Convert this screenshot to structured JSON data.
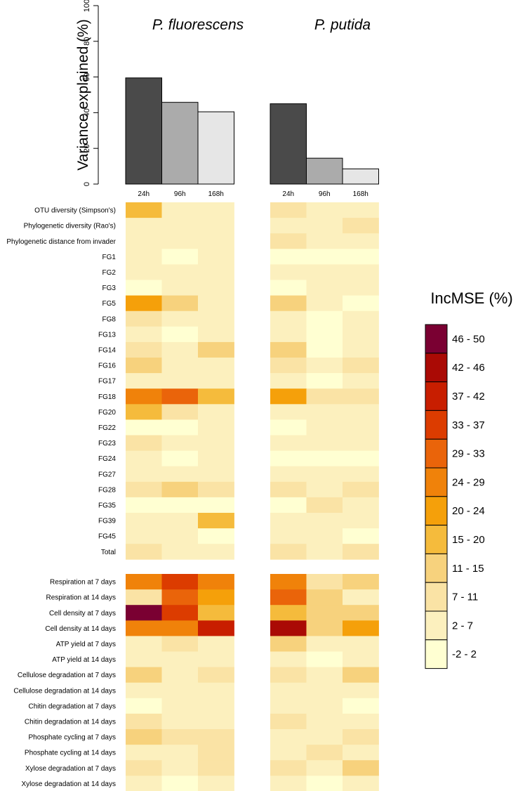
{
  "chart_data": [
    {
      "type": "bar",
      "ylabel": "Variance explained (%)",
      "ylim": [
        0,
        100
      ],
      "yticks": [
        "0",
        "20",
        "40",
        "60",
        "80",
        "100"
      ],
      "categories": [
        "24h",
        "96h",
        "168h"
      ],
      "colors": [
        "#4a4a4a",
        "#ababab",
        "#e6e6e6"
      ],
      "panels": [
        {
          "title": "P. fluorescens",
          "values": [
            59.5,
            45.8,
            40.5
          ]
        },
        {
          "title": "P. putida",
          "values": [
            45,
            14.5,
            8.5
          ]
        }
      ]
    },
    {
      "type": "heatmap",
      "columns": [
        "24h",
        "96h",
        "168h"
      ],
      "panels": [
        "P. fluorescens",
        "P. putida"
      ],
      "groups": [
        {
          "rows": [
            "OTU diversity (Simpson's)",
            "Phylogenetic diversity (Rao's)",
            "Phylogenetic distance from invader",
            "FG1",
            "FG2",
            "FG3",
            "FG5",
            "FG8",
            "FG13",
            "FG14",
            "FG16",
            "FG17",
            "FG18",
            "FG20",
            "FG22",
            "FG23",
            "FG24",
            "FG27",
            "FG28",
            "FG35",
            "FG39",
            "FG45",
            "Total"
          ],
          "values": [
            [
              [
                4,
                1,
                1
              ],
              [
                1,
                1,
                1
              ],
              [
                1,
                1,
                1
              ],
              [
                1,
                0,
                1
              ],
              [
                1,
                1,
                1
              ],
              [
                0,
                1,
                1
              ],
              [
                5,
                3,
                1
              ],
              [
                2,
                1,
                1
              ],
              [
                1,
                0,
                1
              ],
              [
                2,
                1,
                3
              ],
              [
                3,
                1,
                1
              ],
              [
                1,
                1,
                1
              ],
              [
                6,
                7,
                4
              ],
              [
                4,
                2,
                1
              ],
              [
                0,
                0,
                1
              ],
              [
                2,
                1,
                1
              ],
              [
                1,
                0,
                1
              ],
              [
                1,
                1,
                1
              ],
              [
                2,
                3,
                2
              ],
              [
                0,
                0,
                0
              ],
              [
                1,
                1,
                4
              ],
              [
                1,
                1,
                0
              ],
              [
                2,
                1,
                1
              ]
            ],
            [
              [
                2,
                1,
                1
              ],
              [
                1,
                1,
                2
              ],
              [
                2,
                1,
                1
              ],
              [
                0,
                0,
                0
              ],
              [
                1,
                1,
                1
              ],
              [
                0,
                1,
                1
              ],
              [
                3,
                1,
                0
              ],
              [
                1,
                0,
                1
              ],
              [
                1,
                0,
                1
              ],
              [
                3,
                0,
                1
              ],
              [
                2,
                1,
                2
              ],
              [
                1,
                0,
                1
              ],
              [
                5,
                2,
                2
              ],
              [
                1,
                1,
                1
              ],
              [
                0,
                1,
                1
              ],
              [
                1,
                1,
                1
              ],
              [
                0,
                0,
                0
              ],
              [
                1,
                1,
                1
              ],
              [
                2,
                1,
                2
              ],
              [
                0,
                2,
                1
              ],
              [
                1,
                1,
                1
              ],
              [
                1,
                1,
                0
              ],
              [
                2,
                1,
                2
              ]
            ]
          ]
        },
        {
          "rows": [
            "Respiration at 7 days",
            "Respiration at 14 days",
            "Cell density at 7 days",
            "Cell density at 14 days",
            "ATP yield at 7 days",
            "ATP yield at 14 days",
            "Cellulose degradation at 7 days",
            "Cellulose degradation at 14 days",
            "Chitin degradation at 7 days",
            "Chitin degradation at 14 days",
            "Phosphate cycling at 7 days",
            "Phosphate cycling at 14 days",
            "Xylose degradation at 7 days",
            "Xylose degradation at 14 days"
          ],
          "values": [
            [
              [
                6,
                8,
                6
              ],
              [
                2,
                7,
                5
              ],
              [
                11,
                8,
                4
              ],
              [
                6,
                6,
                9
              ],
              [
                1,
                2,
                1
              ],
              [
                1,
                1,
                1
              ],
              [
                3,
                1,
                2
              ],
              [
                1,
                1,
                1
              ],
              [
                0,
                1,
                1
              ],
              [
                2,
                1,
                1
              ],
              [
                3,
                2,
                2
              ],
              [
                1,
                1,
                2
              ],
              [
                2,
                1,
                2
              ],
              [
                1,
                0,
                1
              ]
            ],
            [
              [
                6,
                2,
                3
              ],
              [
                7,
                3,
                1
              ],
              [
                4,
                3,
                3
              ],
              [
                10,
                3,
                5
              ],
              [
                3,
                1,
                1
              ],
              [
                1,
                0,
                1
              ],
              [
                2,
                1,
                3
              ],
              [
                1,
                1,
                1
              ],
              [
                1,
                1,
                0
              ],
              [
                2,
                1,
                1
              ],
              [
                1,
                1,
                2
              ],
              [
                1,
                2,
                1
              ],
              [
                2,
                1,
                3
              ],
              [
                1,
                0,
                1
              ]
            ]
          ]
        }
      ],
      "legend": {
        "title": "IncMSE (%)",
        "labels": [
          "46 - 50",
          "42 - 46",
          "37 - 42",
          "33 - 37",
          "29 - 33",
          "24 - 29",
          "20 - 24",
          "15 - 20",
          "11 - 15",
          "7 - 11",
          "2 - 7",
          "-2 - 2"
        ],
        "colors": [
          "#7a0032",
          "#aa0a05",
          "#c81e00",
          "#dc3c00",
          "#ea640a",
          "#f0820a",
          "#f5a00a",
          "#f5bb3c",
          "#f7d27d",
          "#fae3a5",
          "#fcf0be",
          "#ffffd2"
        ]
      }
    }
  ]
}
